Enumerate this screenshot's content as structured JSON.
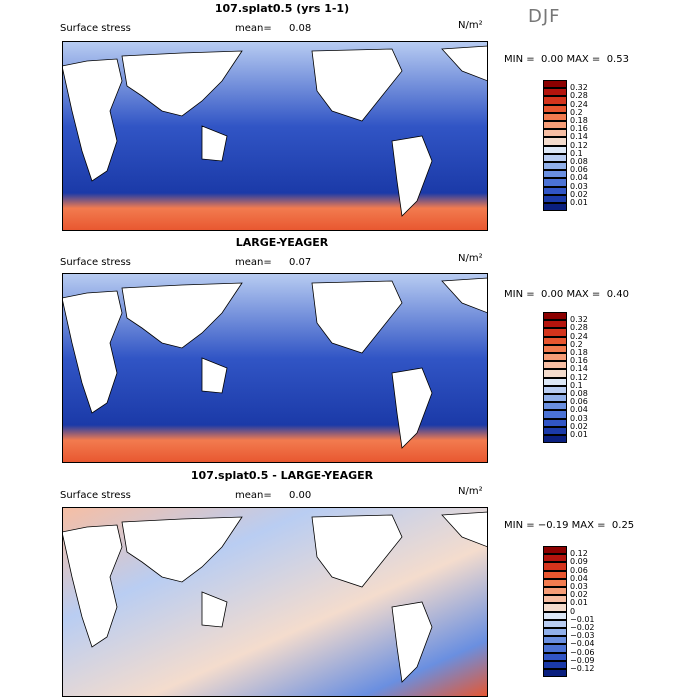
{
  "season": "DJF",
  "colorbar_ab": [
    "0.32",
    "0.28",
    "0.24",
    "0.2",
    "0.18",
    "0.16",
    "0.14",
    "0.12",
    "0.1",
    "0.08",
    "0.06",
    "0.04",
    "0.03",
    "0.02",
    "0.01"
  ],
  "colorbar_diff": [
    "0.12",
    "0.09",
    "0.06",
    "0.04",
    "0.03",
    "0.02",
    "0.01",
    "0",
    "−0.01",
    "−0.02",
    "−0.03",
    "−0.04",
    "−0.06",
    "−0.09",
    "−0.12"
  ],
  "colors_ab": [
    "#8b0000",
    "#b3140d",
    "#d4341c",
    "#e8562f",
    "#f27b4f",
    "#f69d77",
    "#f7bea3",
    "#f4dccd",
    "#dde8f7",
    "#b9cdf2",
    "#91b0ea",
    "#6a8fe0",
    "#4b72d4",
    "#3155c5",
    "#1b3aa8",
    "#0a1f7f"
  ],
  "colors_diff": [
    "#8b0000",
    "#b3140d",
    "#d4341c",
    "#e8562f",
    "#f27b4f",
    "#f69d77",
    "#f7bea3",
    "#f4dccd",
    "#dde8f7",
    "#b9cdf2",
    "#91b0ea",
    "#6a8fe0",
    "#4b72d4",
    "#3155c5",
    "#1b3aa8",
    "#0a1f7f"
  ],
  "panels": [
    {
      "title": "107.splat0.5 (yrs 1-1)",
      "label": "Surface stress",
      "mean_label": "mean=",
      "mean": "0.08",
      "units": "N/m²",
      "min_label": "MIN =",
      "min": "0.00",
      "max_label": "MAX =",
      "max": "0.53"
    },
    {
      "title": "LARGE-YEAGER",
      "label": "Surface stress",
      "mean_label": "mean=",
      "mean": "0.07",
      "units": "N/m²",
      "min_label": "MIN =",
      "min": "0.00",
      "max_label": "MAX =",
      "max": "0.40"
    },
    {
      "title": "107.splat0.5 - LARGE-YEAGER",
      "label": "Surface stress",
      "mean_label": "mean=",
      "mean": "0.00",
      "units": "N/m²",
      "min_label": "MIN =",
      "min": "−0.19",
      "max_label": "MAX =",
      "max": "0.25"
    }
  ]
}
